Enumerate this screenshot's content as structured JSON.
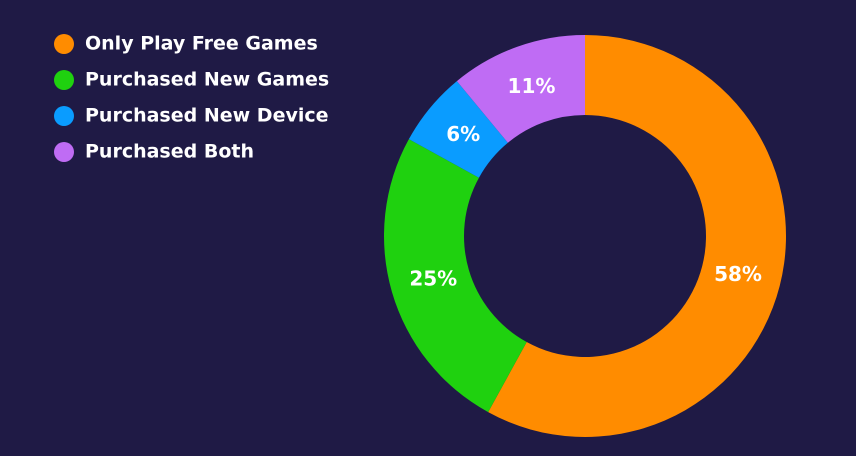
{
  "chart_data": {
    "type": "donut",
    "categories": [
      "Only Play Free Games",
      "Purchased New Games",
      "Purchased New Device",
      "Purchased Both"
    ],
    "values": [
      58,
      25,
      6,
      11
    ],
    "value_labels": [
      "58%",
      "25%",
      "6%",
      "11%"
    ],
    "colors": [
      "#ff8c00",
      "#1fd10f",
      "#0a9cff",
      "#bf6cf4"
    ]
  }
}
